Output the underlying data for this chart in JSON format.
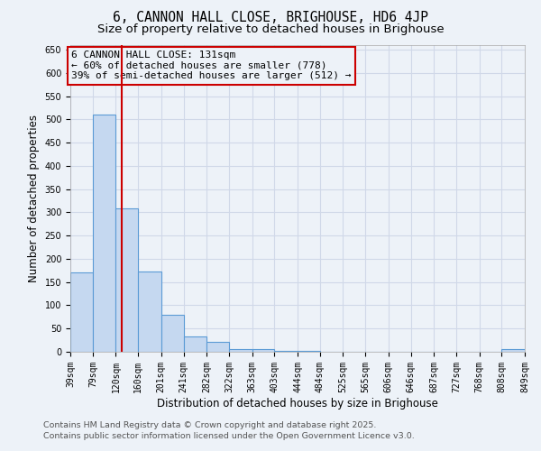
{
  "title": "6, CANNON HALL CLOSE, BRIGHOUSE, HD6 4JP",
  "subtitle": "Size of property relative to detached houses in Brighouse",
  "xlabel": "Distribution of detached houses by size in Brighouse",
  "ylabel": "Number of detached properties",
  "bin_edges": [
    39,
    79,
    120,
    160,
    201,
    241,
    282,
    322,
    363,
    403,
    444,
    484,
    525,
    565,
    606,
    646,
    687,
    727,
    768,
    808,
    849
  ],
  "bar_heights": [
    170,
    510,
    308,
    173,
    80,
    33,
    22,
    6,
    6,
    1,
    1,
    0,
    0,
    0,
    0,
    0,
    0,
    0,
    0,
    5
  ],
  "bar_color": "#c5d8f0",
  "bar_edge_color": "#5b9bd5",
  "grid_color": "#d0d8e8",
  "background_color": "#edf2f8",
  "red_line_x": 131,
  "annotation_line1": "6 CANNON HALL CLOSE: 131sqm",
  "annotation_line2": "← 60% of detached houses are smaller (778)",
  "annotation_line3": "39% of semi-detached houses are larger (512) →",
  "annotation_box_color": "#cc0000",
  "ylim": [
    0,
    660
  ],
  "yticks": [
    0,
    50,
    100,
    150,
    200,
    250,
    300,
    350,
    400,
    450,
    500,
    550,
    600,
    650
  ],
  "footer_line1": "Contains HM Land Registry data © Crown copyright and database right 2025.",
  "footer_line2": "Contains public sector information licensed under the Open Government Licence v3.0.",
  "title_fontsize": 10.5,
  "subtitle_fontsize": 9.5,
  "tick_label_fontsize": 7,
  "axis_label_fontsize": 8.5,
  "annotation_fontsize": 8,
  "footer_fontsize": 6.8
}
